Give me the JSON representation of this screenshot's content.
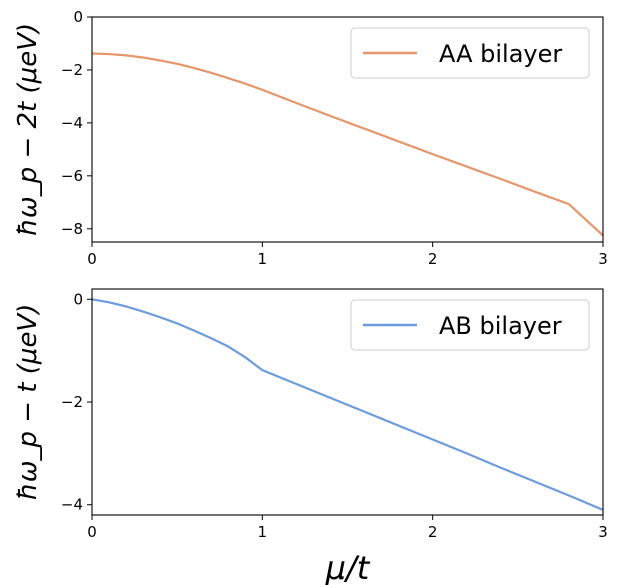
{
  "chart_data": [
    {
      "type": "line",
      "ylabel": "ħω_p − 2t (μeV)",
      "xlabel": "",
      "xlim": [
        0,
        3
      ],
      "ylim": [
        -8.5,
        0
      ],
      "xticks": [
        0,
        1,
        2,
        3
      ],
      "xtick_labels": [
        "0",
        "1",
        "2",
        "3"
      ],
      "yticks": [
        0,
        -2,
        -4,
        -6,
        -8
      ],
      "ytick_labels": [
        "0",
        "−2",
        "−4",
        "−6",
        "−8"
      ],
      "grid": false,
      "legend_position": "top-right",
      "series": [
        {
          "name": "AA bilayer",
          "color": "#e8956a",
          "x": [
            0,
            0.1,
            0.2,
            0.3,
            0.4,
            0.5,
            0.6,
            0.7,
            0.8,
            0.9,
            1.0,
            1.2,
            1.4,
            1.6,
            1.8,
            2.0,
            2.2,
            2.4,
            2.6,
            2.8,
            3.0
          ],
          "y": [
            -1.38,
            -1.4,
            -1.45,
            -1.53,
            -1.64,
            -1.77,
            -1.93,
            -2.11,
            -2.31,
            -2.52,
            -2.75,
            -3.25,
            -3.74,
            -4.22,
            -4.7,
            -5.18,
            -5.65,
            -6.12,
            -6.6,
            -7.07,
            -8.25
          ]
        }
      ]
    },
    {
      "type": "line",
      "ylabel": "ħω_p − t (μeV)",
      "xlabel": "μ/t",
      "xlim": [
        0,
        3
      ],
      "ylim": [
        -4.2,
        0.2
      ],
      "xticks": [
        0,
        1,
        2,
        3
      ],
      "xtick_labels": [
        "0",
        "1",
        "2",
        "3"
      ],
      "yticks": [
        0,
        -2,
        -4
      ],
      "ytick_labels": [
        "0",
        "−2",
        "−4"
      ],
      "grid": false,
      "legend_position": "top-right",
      "series": [
        {
          "name": "AB bilayer",
          "color": "#6b9be0",
          "x": [
            0,
            0.1,
            0.2,
            0.3,
            0.4,
            0.5,
            0.6,
            0.7,
            0.8,
            0.9,
            1.0,
            1.2,
            1.4,
            1.6,
            1.8,
            2.0,
            2.2,
            2.4,
            2.6,
            2.8,
            3.0
          ],
          "y": [
            0.0,
            -0.06,
            -0.14,
            -0.24,
            -0.35,
            -0.47,
            -0.61,
            -0.76,
            -0.92,
            -1.13,
            -1.38,
            -1.65,
            -1.92,
            -2.19,
            -2.46,
            -2.73,
            -3.0,
            -3.28,
            -3.55,
            -3.82,
            -4.1
          ]
        }
      ]
    }
  ]
}
